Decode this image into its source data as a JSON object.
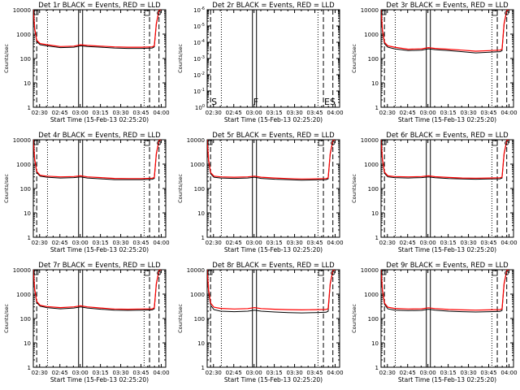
{
  "figure": {
    "xlabel": "Start Time (15-Feb-13 02:25:20)",
    "ylabel": "Counts/sec",
    "series_colors": {
      "events": "#000000",
      "lld": "#ff0000"
    }
  },
  "chart_data": [
    {
      "type": "line",
      "title": "Det 1r BLACK = Events, RED = LLD",
      "xlabel": "Start Time (15-Feb-13 02:25:20)",
      "ylabel": "Counts/sec",
      "x_ticks": [
        "02:30",
        "02:45",
        "03:00",
        "03:15",
        "03:30",
        "03:45",
        "04:00"
      ],
      "xlim_minutes": [
        0,
        98
      ],
      "y_scale": "log",
      "ylim": [
        1,
        10000
      ],
      "y_ticks": [
        "1",
        "10",
        "100",
        "1000",
        "10000"
      ],
      "series": [
        {
          "color": "#000000",
          "x": [
            0,
            1,
            2.5,
            5,
            10,
            20,
            30,
            35,
            40,
            50,
            60,
            70,
            80,
            88,
            89.5,
            91,
            93,
            96,
            98
          ],
          "y": [
            10000,
            1500,
            500,
            370,
            330,
            280,
            290,
            330,
            310,
            290,
            270,
            260,
            260,
            270,
            300,
            2500,
            9000,
            10500,
            10500
          ]
        },
        {
          "color": "#ff0000",
          "x": [
            0,
            1,
            2.5,
            5,
            10,
            20,
            30,
            35,
            40,
            50,
            60,
            70,
            80,
            88,
            89.5,
            91,
            93,
            96,
            98
          ],
          "y": [
            10500,
            1700,
            560,
            410,
            370,
            310,
            320,
            365,
            345,
            320,
            300,
            290,
            290,
            300,
            330,
            2700,
            9500,
            11000,
            11000
          ]
        }
      ],
      "markers": {
        "dotted": [
          10.5,
          82
        ],
        "solid": [
          33.5,
          36.5
        ],
        "dashed": [
          2.5,
          86,
          93
        ]
      },
      "annotations": []
    },
    {
      "type": "line",
      "title": "Det 2r BLACK = Events, RED = LLD",
      "xlabel": "Start Time (15-Feb-13 02:25:20)",
      "ylabel": "Counts/sec",
      "x_ticks": [
        "02:30",
        "02:45",
        "03:00",
        "03:15",
        "03:30",
        "03:45",
        "04:00"
      ],
      "xlim_minutes": [
        0,
        98
      ],
      "y_scale": "log",
      "ylim": [
        1,
        1e-06
      ],
      "y_ticks": [
        "10^0",
        "10^-1",
        "10^-2",
        "10^-3",
        "10^-4",
        "10^-5",
        "10^-6"
      ],
      "series": [],
      "markers": {
        "dotted": [
          10.5,
          82
        ],
        "solid": [
          33.5,
          36.5
        ],
        "dashed": [
          2.5,
          86,
          93
        ]
      },
      "annotations": [
        {
          "text": "S",
          "x_minutes": 2.5
        },
        {
          "text": "F",
          "x_minutes": 33.5
        },
        {
          "text": "ES",
          "x_minutes": 86
        }
      ]
    },
    {
      "type": "line",
      "title": "Det 3r BLACK = Events, RED = LLD",
      "xlabel": "Start Time (15-Feb-13 02:25:20)",
      "ylabel": "Counts/sec",
      "x_ticks": [
        "02:30",
        "02:45",
        "03:00",
        "03:15",
        "03:30",
        "03:45",
        "04:00"
      ],
      "xlim_minutes": [
        0,
        98
      ],
      "y_scale": "log",
      "ylim": [
        1,
        10000
      ],
      "y_ticks": [
        "1",
        "10",
        "100",
        "1000",
        "10000"
      ],
      "series": [
        {
          "color": "#000000",
          "x": [
            0,
            1,
            2.5,
            5,
            10,
            20,
            30,
            35,
            40,
            50,
            60,
            70,
            80,
            88,
            89.5,
            91,
            93,
            96,
            98
          ],
          "y": [
            10000,
            1300,
            400,
            290,
            250,
            210,
            220,
            250,
            230,
            210,
            190,
            170,
            180,
            190,
            210,
            2500,
            9000,
            10500,
            10500
          ]
        },
        {
          "color": "#ff0000",
          "x": [
            0,
            1,
            2.5,
            5,
            10,
            20,
            30,
            35,
            40,
            50,
            60,
            70,
            80,
            88,
            89.5,
            91,
            93,
            96,
            98
          ],
          "y": [
            10500,
            1500,
            460,
            330,
            290,
            240,
            250,
            280,
            260,
            240,
            220,
            200,
            210,
            220,
            240,
            2700,
            9500,
            11000,
            11000
          ]
        }
      ],
      "markers": {
        "dotted": [
          10.5,
          82
        ],
        "solid": [
          33.5,
          36.5
        ],
        "dashed": [
          2.5,
          86,
          93
        ]
      },
      "annotations": []
    },
    {
      "type": "line",
      "title": "Det 4r BLACK = Events, RED = LLD",
      "xlabel": "Start Time (15-Feb-13 02:25:20)",
      "ylabel": "Counts/sec",
      "x_ticks": [
        "02:30",
        "02:45",
        "03:00",
        "03:15",
        "03:30",
        "03:45",
        "04:00"
      ],
      "xlim_minutes": [
        0,
        98
      ],
      "y_scale": "log",
      "ylim": [
        1,
        10000
      ],
      "y_ticks": [
        "1",
        "10",
        "100",
        "1000",
        "10000"
      ],
      "series": [
        {
          "color": "#000000",
          "x": [
            0,
            1,
            2.5,
            5,
            10,
            20,
            30,
            35,
            40,
            50,
            60,
            70,
            80,
            88,
            89.5,
            91,
            93,
            96,
            98
          ],
          "y": [
            10000,
            1400,
            450,
            320,
            290,
            270,
            280,
            300,
            270,
            250,
            230,
            230,
            230,
            240,
            260,
            2500,
            9000,
            10500,
            10500
          ]
        },
        {
          "color": "#ff0000",
          "x": [
            0,
            1,
            2.5,
            5,
            10,
            20,
            30,
            35,
            40,
            50,
            60,
            70,
            80,
            88,
            89.5,
            91,
            93,
            96,
            98
          ],
          "y": [
            10500,
            1600,
            500,
            350,
            320,
            300,
            310,
            330,
            300,
            280,
            260,
            255,
            255,
            265,
            285,
            2700,
            9500,
            11000,
            11000
          ]
        }
      ],
      "markers": {
        "dotted": [
          10.5,
          82
        ],
        "solid": [
          33.5,
          36.5
        ],
        "dashed": [
          2.5,
          86,
          93
        ]
      },
      "annotations": []
    },
    {
      "type": "line",
      "title": "Det 5r BLACK = Events, RED = LLD",
      "xlabel": "Start Time (15-Feb-13 02:25:20)",
      "ylabel": "Counts/sec",
      "x_ticks": [
        "02:30",
        "02:45",
        "03:00",
        "03:15",
        "03:30",
        "03:45",
        "04:00"
      ],
      "xlim_minutes": [
        0,
        98
      ],
      "y_scale": "log",
      "ylim": [
        1,
        10000
      ],
      "y_ticks": [
        "1",
        "10",
        "100",
        "1000",
        "10000"
      ],
      "series": [
        {
          "color": "#000000",
          "x": [
            0,
            1,
            2.5,
            5,
            10,
            20,
            30,
            35,
            40,
            50,
            60,
            70,
            80,
            88,
            89.5,
            91,
            93,
            96,
            98
          ],
          "y": [
            10000,
            1300,
            400,
            290,
            270,
            260,
            270,
            290,
            260,
            240,
            230,
            220,
            225,
            230,
            250,
            2500,
            9000,
            10500,
            10500
          ]
        },
        {
          "color": "#ff0000",
          "x": [
            0,
            1,
            2.5,
            5,
            10,
            20,
            30,
            35,
            40,
            50,
            60,
            70,
            80,
            88,
            89.5,
            91,
            93,
            96,
            98
          ],
          "y": [
            10500,
            1500,
            450,
            320,
            300,
            290,
            300,
            320,
            290,
            270,
            255,
            245,
            250,
            255,
            275,
            2700,
            9500,
            11000,
            11000
          ]
        }
      ],
      "markers": {
        "dotted": [
          10.5,
          82
        ],
        "solid": [
          33.5,
          36.5
        ],
        "dashed": [
          2.5,
          86,
          93
        ]
      },
      "annotations": []
    },
    {
      "type": "line",
      "title": "Det 6r BLACK = Events, RED = LLD",
      "xlabel": "Start Time (15-Feb-13 02:25:20)",
      "ylabel": "Counts/sec",
      "x_ticks": [
        "02:30",
        "02:45",
        "03:00",
        "03:15",
        "03:30",
        "03:45",
        "04:00"
      ],
      "xlim_minutes": [
        0,
        98
      ],
      "y_scale": "log",
      "ylim": [
        1,
        10000
      ],
      "y_ticks": [
        "1",
        "10",
        "100",
        "1000",
        "10000"
      ],
      "series": [
        {
          "color": "#000000",
          "x": [
            0,
            1,
            2.5,
            5,
            10,
            20,
            30,
            35,
            40,
            50,
            60,
            70,
            80,
            88,
            89.5,
            91,
            93,
            96,
            98
          ],
          "y": [
            10000,
            1400,
            420,
            300,
            280,
            270,
            280,
            300,
            275,
            255,
            245,
            240,
            245,
            250,
            270,
            2500,
            9000,
            10500,
            10500
          ]
        },
        {
          "color": "#ff0000",
          "x": [
            0,
            1,
            2.5,
            5,
            10,
            20,
            30,
            35,
            40,
            50,
            60,
            70,
            80,
            88,
            89.5,
            91,
            93,
            96,
            98
          ],
          "y": [
            10500,
            1600,
            470,
            330,
            310,
            300,
            310,
            330,
            305,
            285,
            270,
            265,
            270,
            275,
            295,
            2700,
            9500,
            11000,
            11000
          ]
        }
      ],
      "markers": {
        "dotted": [
          10.5,
          82
        ],
        "solid": [
          33.5,
          36.5
        ],
        "dashed": [
          2.5,
          86,
          93
        ]
      },
      "annotations": []
    },
    {
      "type": "line",
      "title": "Det 7r BLACK = Events, RED = LLD",
      "xlabel": "Start Time (15-Feb-13 02:25:20)",
      "ylabel": "Counts/sec",
      "x_ticks": [
        "02:30",
        "02:45",
        "03:00",
        "03:15",
        "03:30",
        "03:45",
        "04:00"
      ],
      "xlim_minutes": [
        0,
        98
      ],
      "y_scale": "log",
      "ylim": [
        1,
        10000
      ],
      "y_ticks": [
        "1",
        "10",
        "100",
        "1000",
        "10000"
      ],
      "series": [
        {
          "color": "#000000",
          "x": [
            0,
            1,
            2.5,
            5,
            10,
            20,
            30,
            35,
            40,
            50,
            60,
            70,
            80,
            88,
            89.5,
            91,
            93,
            96,
            98
          ],
          "y": [
            10000,
            1400,
            450,
            320,
            280,
            250,
            270,
            300,
            270,
            240,
            220,
            215,
            220,
            225,
            250,
            2500,
            9000,
            10500,
            10500
          ]
        },
        {
          "color": "#ff0000",
          "x": [
            0,
            1,
            2.5,
            5,
            10,
            20,
            30,
            35,
            40,
            50,
            60,
            70,
            80,
            88,
            89.5,
            91,
            93,
            96,
            98
          ],
          "y": [
            10500,
            1600,
            500,
            350,
            310,
            280,
            300,
            330,
            300,
            270,
            245,
            240,
            245,
            250,
            275,
            2700,
            9500,
            11000,
            11000
          ]
        }
      ],
      "markers": {
        "dotted": [
          10.5,
          82
        ],
        "solid": [
          33.5,
          36.5
        ],
        "dashed": [
          2.5,
          86,
          93
        ]
      },
      "annotations": []
    },
    {
      "type": "line",
      "title": "Det 8r BLACK = Events, RED = LLD",
      "xlabel": "Start Time (15-Feb-13 02:25:20)",
      "ylabel": "Counts/sec",
      "x_ticks": [
        "02:30",
        "02:45",
        "03:00",
        "03:15",
        "03:30",
        "03:45",
        "04:00"
      ],
      "xlim_minutes": [
        0,
        98
      ],
      "y_scale": "log",
      "ylim": [
        1,
        10000
      ],
      "y_ticks": [
        "1",
        "10",
        "100",
        "1000",
        "10000"
      ],
      "series": [
        {
          "color": "#000000",
          "x": [
            0,
            1,
            2.5,
            5,
            10,
            20,
            30,
            35,
            40,
            50,
            60,
            70,
            80,
            88,
            89.5,
            91,
            93,
            96,
            98
          ],
          "y": [
            10000,
            1200,
            350,
            230,
            200,
            190,
            200,
            220,
            200,
            185,
            175,
            170,
            175,
            180,
            200,
            2500,
            9000,
            10500,
            10500
          ]
        },
        {
          "color": "#ff0000",
          "x": [
            0,
            1,
            2.5,
            5,
            10,
            20,
            30,
            35,
            40,
            50,
            60,
            70,
            80,
            88,
            89.5,
            91,
            93,
            96,
            98
          ],
          "y": [
            10500,
            1500,
            430,
            290,
            260,
            245,
            255,
            280,
            255,
            240,
            230,
            225,
            230,
            235,
            255,
            2700,
            9500,
            11000,
            11000
          ]
        }
      ],
      "markers": {
        "dotted": [
          10.5,
          82
        ],
        "solid": [
          33.5,
          36.5
        ],
        "dashed": [
          2.5,
          86,
          93
        ]
      },
      "annotations": []
    },
    {
      "type": "line",
      "title": "Det 9r BLACK = Events, RED = LLD",
      "xlabel": "Start Time (15-Feb-13 02:25:20)",
      "ylabel": "Counts/sec",
      "x_ticks": [
        "02:30",
        "02:45",
        "03:00",
        "03:15",
        "03:30",
        "03:45",
        "04:00"
      ],
      "xlim_minutes": [
        0,
        98
      ],
      "y_scale": "log",
      "ylim": [
        1,
        10000
      ],
      "y_ticks": [
        "1",
        "10",
        "100",
        "1000",
        "10000"
      ],
      "series": [
        {
          "color": "#000000",
          "x": [
            0,
            1,
            2.5,
            5,
            10,
            20,
            30,
            35,
            40,
            50,
            60,
            70,
            80,
            88,
            89.5,
            91,
            93,
            96,
            98
          ],
          "y": [
            10000,
            1300,
            380,
            250,
            220,
            210,
            215,
            240,
            220,
            200,
            190,
            185,
            190,
            195,
            215,
            2500,
            9000,
            10500,
            10500
          ]
        },
        {
          "color": "#ff0000",
          "x": [
            0,
            1,
            2.5,
            5,
            10,
            20,
            30,
            35,
            40,
            50,
            60,
            70,
            80,
            88,
            89.5,
            91,
            93,
            96,
            98
          ],
          "y": [
            10500,
            1500,
            430,
            290,
            260,
            245,
            250,
            275,
            255,
            235,
            225,
            220,
            225,
            230,
            250,
            2700,
            9500,
            11000,
            11000
          ]
        }
      ],
      "markers": {
        "dotted": [
          10.5,
          82
        ],
        "solid": [
          33.5,
          36.5
        ],
        "dashed": [
          2.5,
          86,
          93
        ]
      },
      "annotations": []
    }
  ]
}
